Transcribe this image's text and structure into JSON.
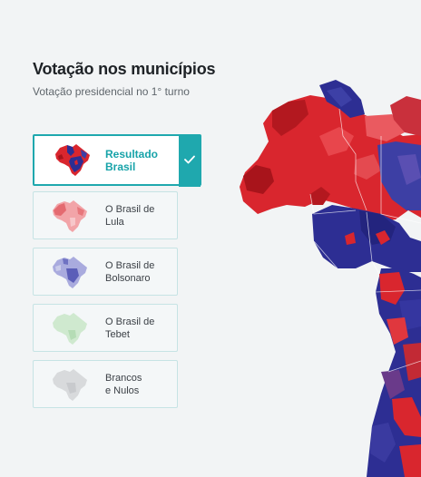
{
  "header": {
    "title": "Votação nos municípios",
    "subtitle": "Votação presidencial no 1° turno"
  },
  "options": [
    {
      "label_line1": "Resultado",
      "label_line2": "Brasil",
      "selected": true,
      "color": "#d9262e",
      "icon": "brazil-results-map-icon"
    },
    {
      "label_line1": "O Brasil de",
      "label_line2": "Lula",
      "selected": false,
      "color": "#ef8d92",
      "icon": "brazil-lula-map-icon"
    },
    {
      "label_line1": "O Brasil de",
      "label_line2": "Bolsonaro",
      "selected": false,
      "color": "#8b8ed0",
      "icon": "brazil-bolsonaro-map-icon"
    },
    {
      "label_line1": "O Brasil de",
      "label_line2": "Tebet",
      "selected": false,
      "color": "#bfe2bf",
      "icon": "brazil-tebet-map-icon"
    },
    {
      "label_line1": "Brancos",
      "label_line2": "e Nulos",
      "selected": false,
      "color": "#d4d6d8",
      "icon": "brazil-blank-null-map-icon"
    }
  ],
  "colors": {
    "accent": "#1fa8ae",
    "lula": "#d9262e",
    "bolsonaro": "#2d2e93"
  },
  "icons": {
    "selected_check": "check-icon"
  }
}
